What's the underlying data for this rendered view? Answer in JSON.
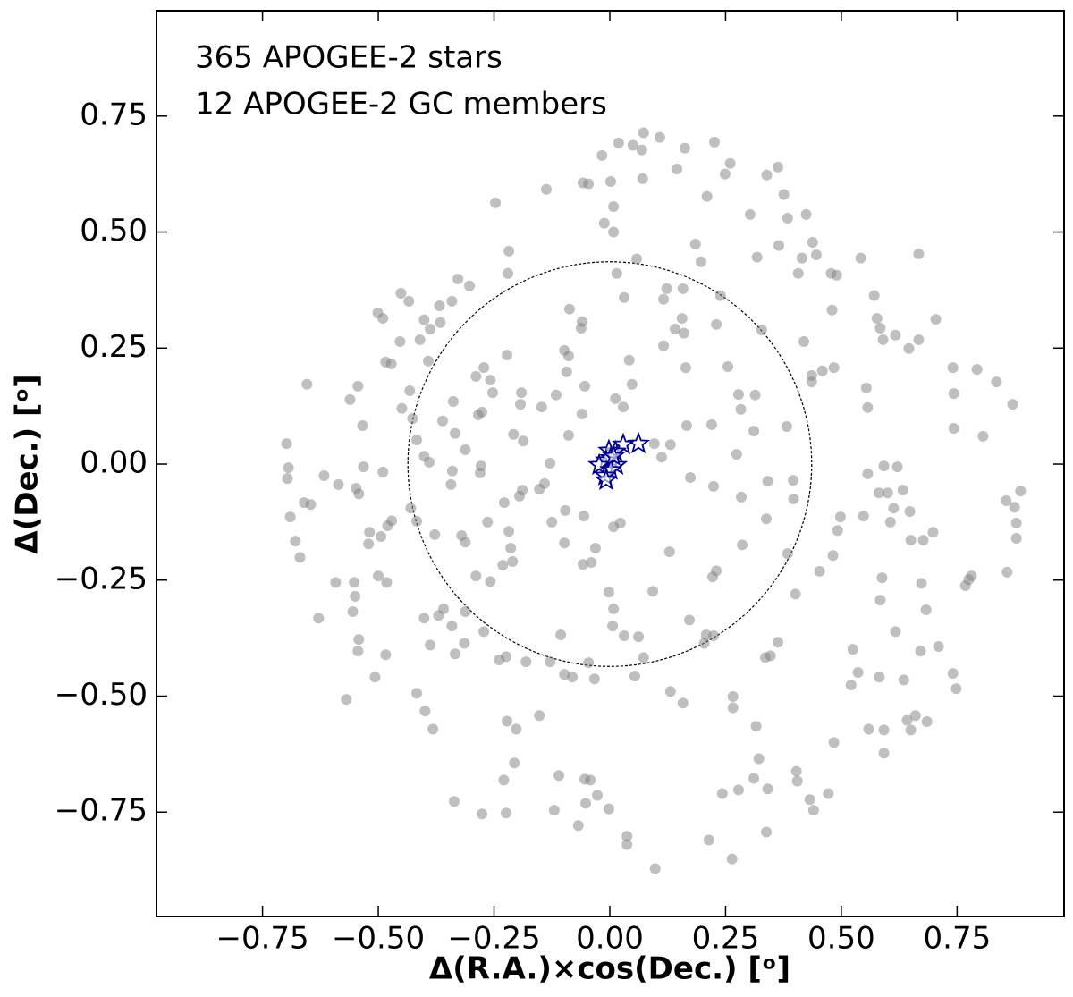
{
  "chart_data": {
    "type": "scatter",
    "xlabel": "Δ(R.A.)×cos(Dec.) [ᵒ]",
    "ylabel": "Δ(Dec.) [ᵒ]",
    "xlim": [
      -0.979,
      0.981
    ],
    "ylim": [
      -0.975,
      0.977
    ],
    "xticks": [
      {
        "value": -0.75,
        "label": "−0.75"
      },
      {
        "value": -0.5,
        "label": "−0.50"
      },
      {
        "value": -0.25,
        "label": "−0.25"
      },
      {
        "value": 0,
        "label": "0.00"
      },
      0.25,
      {
        "value": 0.5,
        "label": "0.50"
      },
      0.75
    ],
    "yticks": [
      {
        "value": -0.75,
        "label": "−0.75"
      },
      {
        "value": -0.5,
        "label": "−0.50"
      },
      {
        "value": -0.25,
        "label": "−0.25"
      },
      {
        "value": 0,
        "label": "0.00"
      },
      0.25,
      {
        "value": 0.5,
        "label": "0.50"
      },
      0.75
    ],
    "grid": false,
    "reference_circle": {
      "radius": 0.436,
      "color": "#000000"
    },
    "series": [
      {
        "name": "365 APOGEE-2 stars",
        "color": "#808080",
        "alpha": 0.5,
        "marker": "circle",
        "x": [
          0.019,
          0.073,
          0.05,
          0.069,
          -0.017,
          0.108,
          0.162,
          0.145,
          0.226,
          0.26,
          0.21,
          -0.137,
          -0.058,
          -0.046,
          0.002,
          0.071,
          0.339,
          0.363,
          0.376,
          0.249,
          0.303,
          0.384,
          0.424,
          0.008,
          -0.012,
          0.008,
          -0.247,
          -0.218,
          -0.22,
          0.185,
          0.197,
          0.318,
          0.365,
          0.438,
          0.415,
          0.446,
          0.478,
          0.49,
          0.542,
          0.667,
          0.407,
          0.058,
          0.015,
          0.031,
          0.123,
          0.158,
          0.116,
          0.239,
          0.156,
          0.141,
          0.16,
          0.23,
          0.328,
          0.419,
          0.48,
          0.571,
          0.577,
          0.584,
          0.59,
          0.617,
          0.646,
          0.667,
          0.704,
          0.741,
          0.793,
          0.835,
          0.743,
          0.743,
          0.806,
          0.87,
          0.554,
          0.557,
          0.484,
          0.459,
          0.436,
          0.436,
          0.382,
          0.314,
          0.278,
          0.283,
          0.22,
          0.255,
          0.116,
          0.048,
          0.012,
          0.029,
          0.096,
          0.274,
          0.224,
          0.284,
          0.341,
          0.396,
          0.397,
          0.338,
          0.286,
          0.384,
          0.174,
          0.129,
          0.023,
          0.008,
          -0.056,
          -0.098,
          -0.031,
          -0.058,
          -0.04,
          -0.125,
          -0.152,
          -0.189,
          -0.195,
          -0.228,
          -0.278,
          -0.28,
          -0.264,
          -0.218,
          -0.214,
          -0.231,
          -0.21,
          -0.258,
          -0.289,
          -0.32,
          -0.312,
          -0.343,
          -0.378,
          -0.43,
          -0.417,
          -0.471,
          -0.494,
          -0.48,
          -0.519,
          -0.521,
          -0.542,
          -0.548,
          -0.49,
          -0.586,
          -0.617,
          -0.646,
          -0.66,
          -0.694,
          -0.696,
          -0.69,
          -0.679,
          -0.669,
          -0.698,
          -0.592,
          -0.552,
          -0.55,
          -0.5,
          -0.482,
          -0.401,
          -0.37,
          -0.359,
          -0.341,
          -0.314,
          -0.272,
          -0.334,
          -0.312,
          -0.388,
          -0.629,
          -0.555,
          -0.542,
          -0.484,
          -0.507,
          -0.569,
          -0.544,
          -0.417,
          -0.399,
          -0.382,
          -0.336,
          -0.276,
          -0.224,
          -0.229,
          -0.206,
          -0.222,
          -0.202,
          -0.152,
          -0.11,
          -0.12,
          -0.054,
          -0.042,
          -0.052,
          -0.068,
          -0.027,
          -0.002,
          0.037,
          0.037,
          0.098,
          0.214,
          0.264,
          0.338,
          0.243,
          0.278,
          0.311,
          0.341,
          0.322,
          0.403,
          0.405,
          0.432,
          0.44,
          0.472,
          0.266,
          0.266,
          0.316,
          0.158,
          0.131,
          0.054,
          0.073,
          0.062,
          0.006,
          -0.002,
          0.008,
          0.093,
          0.031,
          -0.106,
          -0.098,
          -0.081,
          -0.046,
          -0.033,
          -0.129,
          -0.181,
          -0.224,
          -0.239,
          0.224,
          0.208,
          0.204,
          0.172,
          0.23,
          0.222,
          0.336,
          0.347,
          0.363,
          0.401,
          0.453,
          0.482,
          0.492,
          0.498,
          0.548,
          0.557,
          0.592,
          0.581,
          0.6,
          0.633,
          0.613,
          0.648,
          0.606,
          0.65,
          0.677,
          0.698,
          0.588,
          0.584,
          0.617,
          0.683,
          0.71,
          0.671,
          0.673,
          0.525,
          0.536,
          0.521,
          0.582,
          0.635,
          0.741,
          0.748,
          0.775,
          0.781,
          0.768,
          0.858,
          0.856,
          0.874,
          0.878,
          0.887,
          0.878,
          0.642,
          0.66,
          0.685,
          0.65,
          0.559,
          0.592,
          0.592,
          0.484,
          -0.654,
          -0.561,
          -0.534,
          -0.501,
          -0.49,
          -0.484,
          -0.472,
          -0.451,
          -0.434,
          -0.453,
          -0.401,
          -0.368,
          -0.366,
          -0.328,
          -0.303,
          -0.341,
          -0.41,
          -0.388,
          -0.432,
          -0.426,
          -0.449,
          -0.361,
          -0.392,
          -0.334,
          -0.338,
          -0.284,
          -0.289,
          -0.258,
          -0.272,
          -0.253,
          -0.276,
          -0.222,
          -0.208,
          -0.193,
          -0.191,
          -0.147,
          -0.116,
          -0.089,
          -0.093,
          -0.06,
          -0.062,
          -0.087,
          -0.098,
          -0.054,
          -0.06,
          -0.089,
          -0.129,
          -0.39,
          -0.401,
          -0.417,
          -0.34,
          -0.312,
          -0.544,
          -0.532,
          -0.187,
          -0.141,
          -0.096,
          0.112,
          0.131,
          0.166,
          0.164,
          0.042,
          0.311,
          0.621
        ],
        "values": [
          0.692,
          0.714,
          0.687,
          0.677,
          0.665,
          0.704,
          0.681,
          0.636,
          0.694,
          0.648,
          0.577,
          0.592,
          0.606,
          0.604,
          0.609,
          0.615,
          0.623,
          0.64,
          0.581,
          0.625,
          0.538,
          0.53,
          0.538,
          0.555,
          0.519,
          0.5,
          0.563,
          0.459,
          0.411,
          0.474,
          0.436,
          0.446,
          0.471,
          0.478,
          0.444,
          0.451,
          0.411,
          0.407,
          0.444,
          0.453,
          0.411,
          0.442,
          0.411,
          0.359,
          0.378,
          0.378,
          0.355,
          0.363,
          0.314,
          0.291,
          0.282,
          0.301,
          0.289,
          0.264,
          0.332,
          0.363,
          0.314,
          0.293,
          0.268,
          0.278,
          0.249,
          0.268,
          0.312,
          0.208,
          0.204,
          0.177,
          0.152,
          0.077,
          0.06,
          0.129,
          0.164,
          0.122,
          0.208,
          0.201,
          0.191,
          0.177,
          0.081,
          0.149,
          0.15,
          0.118,
          0.085,
          0.21,
          0.255,
          0.172,
          0.141,
          0.123,
          0.044,
          0.021,
          -0.048,
          -0.071,
          -0.037,
          -0.035,
          -0.075,
          -0.118,
          -0.174,
          -0.193,
          -0.029,
          -0.189,
          -0.127,
          -0.135,
          -0.112,
          -0.17,
          -0.181,
          -0.216,
          -0.212,
          -0.125,
          -0.054,
          -0.056,
          -0.069,
          -0.083,
          -0.004,
          -0.019,
          -0.125,
          -0.145,
          -0.181,
          -0.218,
          -0.21,
          -0.253,
          -0.241,
          -0.154,
          -0.168,
          -0.044,
          -0.152,
          -0.095,
          -0.123,
          -0.122,
          -0.156,
          -0.133,
          -0.147,
          -0.172,
          -0.064,
          -0.052,
          -0.017,
          -0.044,
          -0.025,
          -0.087,
          -0.083,
          -0.008,
          -0.031,
          -0.114,
          -0.166,
          -0.201,
          0.044,
          -0.255,
          -0.255,
          -0.285,
          -0.241,
          -0.255,
          -0.332,
          -0.326,
          -0.312,
          -0.349,
          -0.386,
          -0.361,
          -0.409,
          -0.318,
          -0.39,
          -0.332,
          -0.318,
          -0.378,
          -0.411,
          -0.459,
          -0.507,
          -0.403,
          -0.494,
          -0.532,
          -0.571,
          -0.727,
          -0.754,
          -0.752,
          -0.681,
          -0.644,
          -0.554,
          -0.571,
          -0.542,
          -0.671,
          -0.746,
          -0.679,
          -0.681,
          -0.731,
          -0.779,
          -0.714,
          -0.743,
          -0.802,
          -0.82,
          -0.872,
          -0.81,
          -0.851,
          -0.793,
          -0.71,
          -0.702,
          -0.677,
          -0.7,
          -0.635,
          -0.662,
          -0.683,
          -0.723,
          -0.746,
          -0.71,
          -0.501,
          -0.525,
          -0.565,
          -0.515,
          -0.49,
          -0.457,
          -0.417,
          -0.372,
          -0.349,
          -0.276,
          -0.312,
          -0.274,
          -0.37,
          -0.368,
          -0.453,
          -0.459,
          -0.428,
          -0.463,
          -0.426,
          -0.426,
          -0.415,
          -0.422,
          -0.37,
          -0.368,
          -0.386,
          -0.336,
          -0.23,
          -0.243,
          -0.417,
          -0.413,
          -0.384,
          -0.28,
          -0.231,
          -0.197,
          -0.143,
          -0.114,
          -0.112,
          -0.021,
          -0.004,
          -0.062,
          -0.062,
          -0.056,
          -0.095,
          -0.102,
          -0.125,
          -0.164,
          -0.164,
          -0.147,
          -0.245,
          -0.293,
          -0.361,
          -0.314,
          -0.393,
          -0.403,
          -0.257,
          -0.399,
          -0.449,
          -0.476,
          -0.459,
          -0.465,
          -0.451,
          -0.484,
          -0.249,
          -0.241,
          -0.262,
          -0.233,
          -0.079,
          -0.093,
          -0.127,
          -0.058,
          -0.16,
          -0.552,
          -0.542,
          -0.555,
          -0.573,
          -0.571,
          -0.573,
          -0.623,
          -0.6,
          0.172,
          0.139,
          0.083,
          0.326,
          0.314,
          0.22,
          0.216,
          0.368,
          0.351,
          0.264,
          0.311,
          0.341,
          0.305,
          0.399,
          0.384,
          0.351,
          0.268,
          0.291,
          0.158,
          0.098,
          0.12,
          0.093,
          0.222,
          0.066,
          0.135,
          0.106,
          0.189,
          0.181,
          0.208,
          0.154,
          0.112,
          0.235,
          0.064,
          0.129,
          0.154,
          0.123,
          0.149,
          0.233,
          0.199,
          0.307,
          0.293,
          0.334,
          0.245,
          0.168,
          0.108,
          0.062,
          0.002,
          0.004,
          0.017,
          0.052,
          -0.015,
          0.031,
          0.168,
          -0.006,
          0.05,
          -0.042,
          -0.1,
          0.015,
          0.042,
          0.083,
          0.208,
          0.224,
          0.071,
          -0.006
        ]
      },
      {
        "name": "12 APOGEE-2 GC members",
        "color": "#00008b",
        "marker": "star",
        "x": [
          0.062,
          0.029,
          0.012,
          -0.002,
          0.002,
          -0.008,
          0.014,
          -0.023,
          0.002,
          -0.01,
          -0.008,
          0.008
        ],
        "values": [
          0.044,
          0.042,
          0.027,
          0.029,
          0.013,
          0.008,
          -0.002,
          -0.002,
          -0.013,
          -0.025,
          -0.035,
          0.017
        ]
      }
    ]
  }
}
